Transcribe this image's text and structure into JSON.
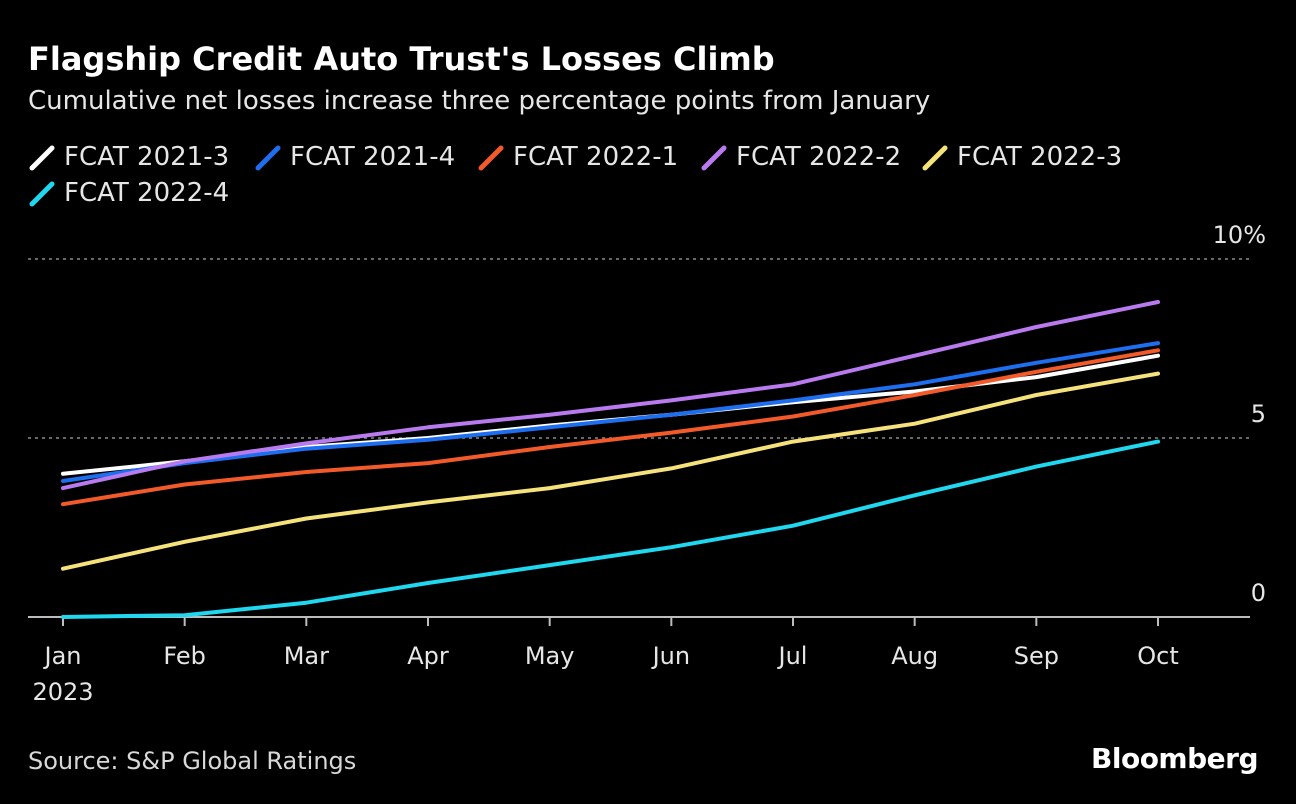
{
  "title": "Flagship Credit Auto Trust's Losses Climb",
  "subtitle": "Cumulative net losses increase three percentage points from January",
  "source": "Source: S&P Global Ratings",
  "brand": "Bloomberg",
  "chart_data": {
    "type": "line",
    "x": [
      "Jan",
      "Feb",
      "Mar",
      "Apr",
      "May",
      "Jun",
      "Jul",
      "Aug",
      "Sep",
      "Oct"
    ],
    "x_sublabel": "2023",
    "ylim": [
      0,
      10
    ],
    "yticks": [
      {
        "value": 0,
        "label": "0"
      },
      {
        "value": 5,
        "label": "5"
      },
      {
        "value": 10,
        "label": "10%"
      }
    ],
    "grid": true,
    "legend_position": "top-left",
    "series": [
      {
        "name": "FCAT 2021-3",
        "color": "#ffffff",
        "values": [
          4.0,
          4.35,
          4.75,
          5.0,
          5.35,
          5.65,
          6.0,
          6.3,
          6.7,
          7.3
        ]
      },
      {
        "name": "FCAT 2021-4",
        "color": "#1e6ef0",
        "values": [
          3.8,
          4.3,
          4.7,
          4.95,
          5.3,
          5.65,
          6.05,
          6.5,
          7.1,
          7.65
        ]
      },
      {
        "name": "FCAT 2022-1",
        "color": "#f25a2a",
        "values": [
          3.15,
          3.7,
          4.05,
          4.3,
          4.75,
          5.15,
          5.6,
          6.2,
          6.85,
          7.45
        ]
      },
      {
        "name": "FCAT 2022-2",
        "color": "#b97af0",
        "values": [
          3.6,
          4.35,
          4.85,
          5.3,
          5.65,
          6.05,
          6.5,
          7.3,
          8.1,
          8.8
        ]
      },
      {
        "name": "FCAT 2022-3",
        "color": "#f5e27a",
        "values": [
          1.35,
          2.1,
          2.75,
          3.2,
          3.6,
          4.15,
          4.9,
          5.4,
          6.2,
          6.8
        ]
      },
      {
        "name": "FCAT 2022-4",
        "color": "#1fd8f0",
        "values": [
          0.0,
          0.05,
          0.4,
          0.95,
          1.45,
          1.95,
          2.55,
          3.4,
          4.2,
          4.9
        ]
      }
    ]
  }
}
